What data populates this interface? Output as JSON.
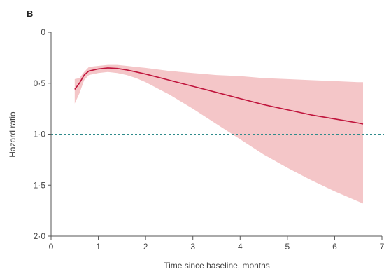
{
  "chart_data": {
    "type": "line",
    "panel_label": "B",
    "xlabel": "Time since baseline, months",
    "ylabel": "Hazard ratio",
    "xlim": [
      0,
      7
    ],
    "ylim": [
      0,
      2.0
    ],
    "y_inverted": true,
    "x_ticks": [
      0,
      1,
      2,
      3,
      4,
      5,
      6,
      7
    ],
    "x_tick_labels": [
      "0",
      "1",
      "2",
      "3",
      "4",
      "5",
      "6",
      "7"
    ],
    "y_ticks": [
      0,
      0.5,
      1.0,
      1.5,
      2.0
    ],
    "y_tick_labels": [
      "0",
      "0·5",
      "1·0",
      "1·5",
      "2·0"
    ],
    "grid": false,
    "reference_line": {
      "y": 1.0,
      "style": "dashed",
      "color": "#2e8b8b"
    },
    "series": [
      {
        "x": [
          0.5,
          0.6,
          0.7,
          0.8,
          1.0,
          1.2,
          1.4,
          1.6,
          1.8,
          2.0,
          2.5,
          3.0,
          3.5,
          4.0,
          4.5,
          5.0,
          5.5,
          6.0,
          6.5,
          6.6
        ],
        "y": [
          0.56,
          0.5,
          0.42,
          0.38,
          0.36,
          0.35,
          0.355,
          0.37,
          0.39,
          0.41,
          0.47,
          0.53,
          0.59,
          0.65,
          0.71,
          0.76,
          0.81,
          0.85,
          0.89,
          0.9
        ],
        "lower": [
          0.46,
          0.45,
          0.39,
          0.34,
          0.33,
          0.32,
          0.32,
          0.33,
          0.34,
          0.35,
          0.38,
          0.4,
          0.42,
          0.43,
          0.45,
          0.46,
          0.47,
          0.48,
          0.49,
          0.49
        ],
        "upper": [
          0.7,
          0.6,
          0.47,
          0.42,
          0.4,
          0.39,
          0.4,
          0.42,
          0.45,
          0.49,
          0.61,
          0.75,
          0.9,
          1.05,
          1.2,
          1.33,
          1.45,
          1.56,
          1.66,
          1.68
        ],
        "color": "#c0143c",
        "band_color": "#f4c6c8"
      }
    ]
  }
}
